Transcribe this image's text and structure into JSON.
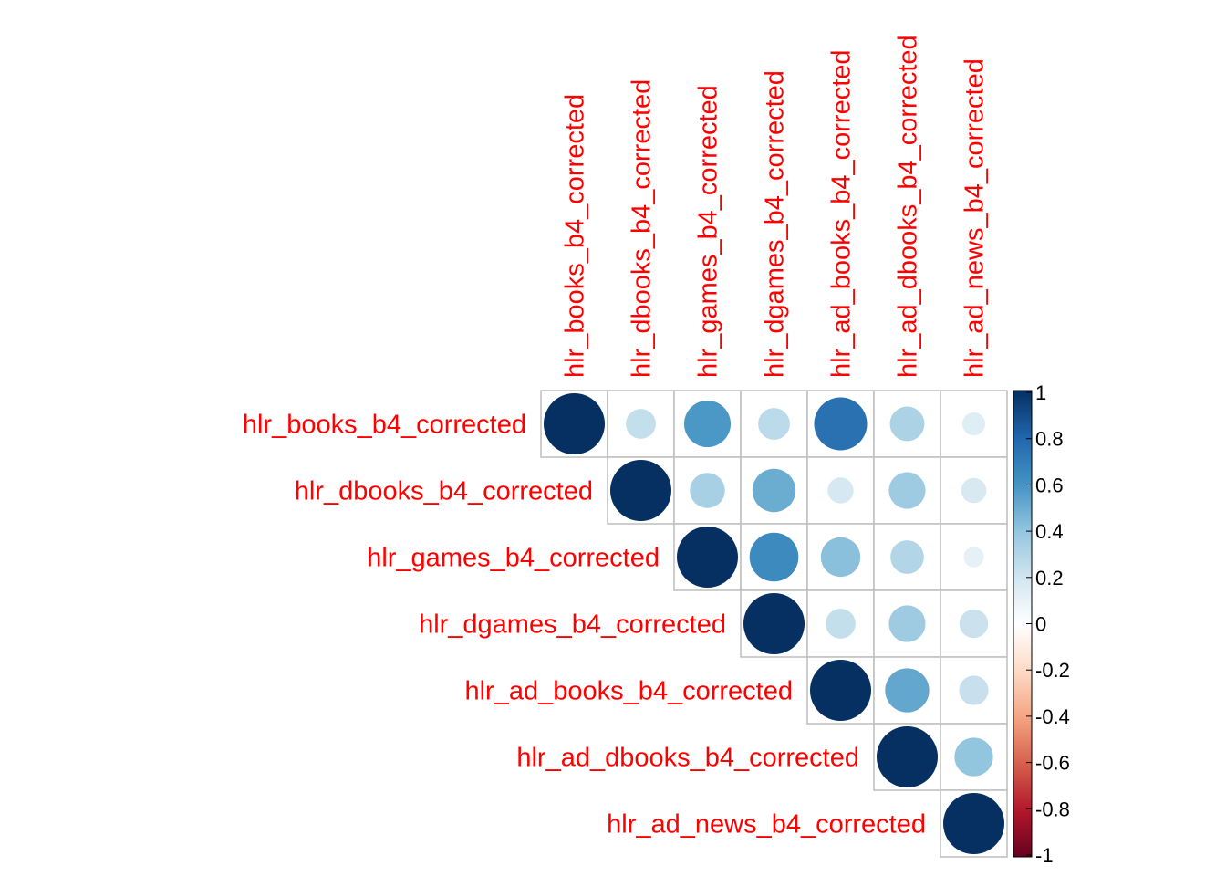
{
  "chart_data": {
    "type": "heatmap",
    "subtype": "correlation-circles-upper-triangle",
    "variables": [
      "hlr_books_b4_corrected",
      "hlr_dbooks_b4_corrected",
      "hlr_games_b4_corrected",
      "hlr_dgames_b4_corrected",
      "hlr_ad_books_b4_corrected",
      "hlr_ad_dbooks_b4_corrected",
      "hlr_ad_news_b4_corrected"
    ],
    "matrix": [
      [
        1.0,
        0.24,
        0.58,
        0.27,
        0.75,
        0.32,
        0.14
      ],
      [
        0.24,
        1.0,
        0.33,
        0.5,
        0.18,
        0.36,
        0.17
      ],
      [
        0.58,
        0.33,
        1.0,
        0.64,
        0.42,
        0.3,
        0.11
      ],
      [
        0.27,
        0.5,
        0.64,
        1.0,
        0.24,
        0.36,
        0.22
      ],
      [
        0.75,
        0.18,
        0.42,
        0.24,
        1.0,
        0.52,
        0.23
      ],
      [
        0.32,
        0.36,
        0.3,
        0.36,
        0.52,
        1.0,
        0.4
      ],
      [
        0.14,
        0.17,
        0.11,
        0.22,
        0.23,
        0.4,
        1.0
      ]
    ],
    "triangle": "upper",
    "label_color": "#ff0000",
    "grid_color": "#bebebe",
    "colorbar": {
      "ticks": [
        "1",
        "0.8",
        "0.6",
        "0.4",
        "0.2",
        "0",
        "-0.2",
        "-0.4",
        "-0.6",
        "-0.8",
        "-1"
      ],
      "range": [
        -1,
        1
      ],
      "palette": [
        "#67001f",
        "#b2182b",
        "#d6604d",
        "#f4a582",
        "#fddbc7",
        "#ffffff",
        "#d1e5f0",
        "#92c5de",
        "#4393c3",
        "#2166ac",
        "#053061"
      ]
    }
  }
}
